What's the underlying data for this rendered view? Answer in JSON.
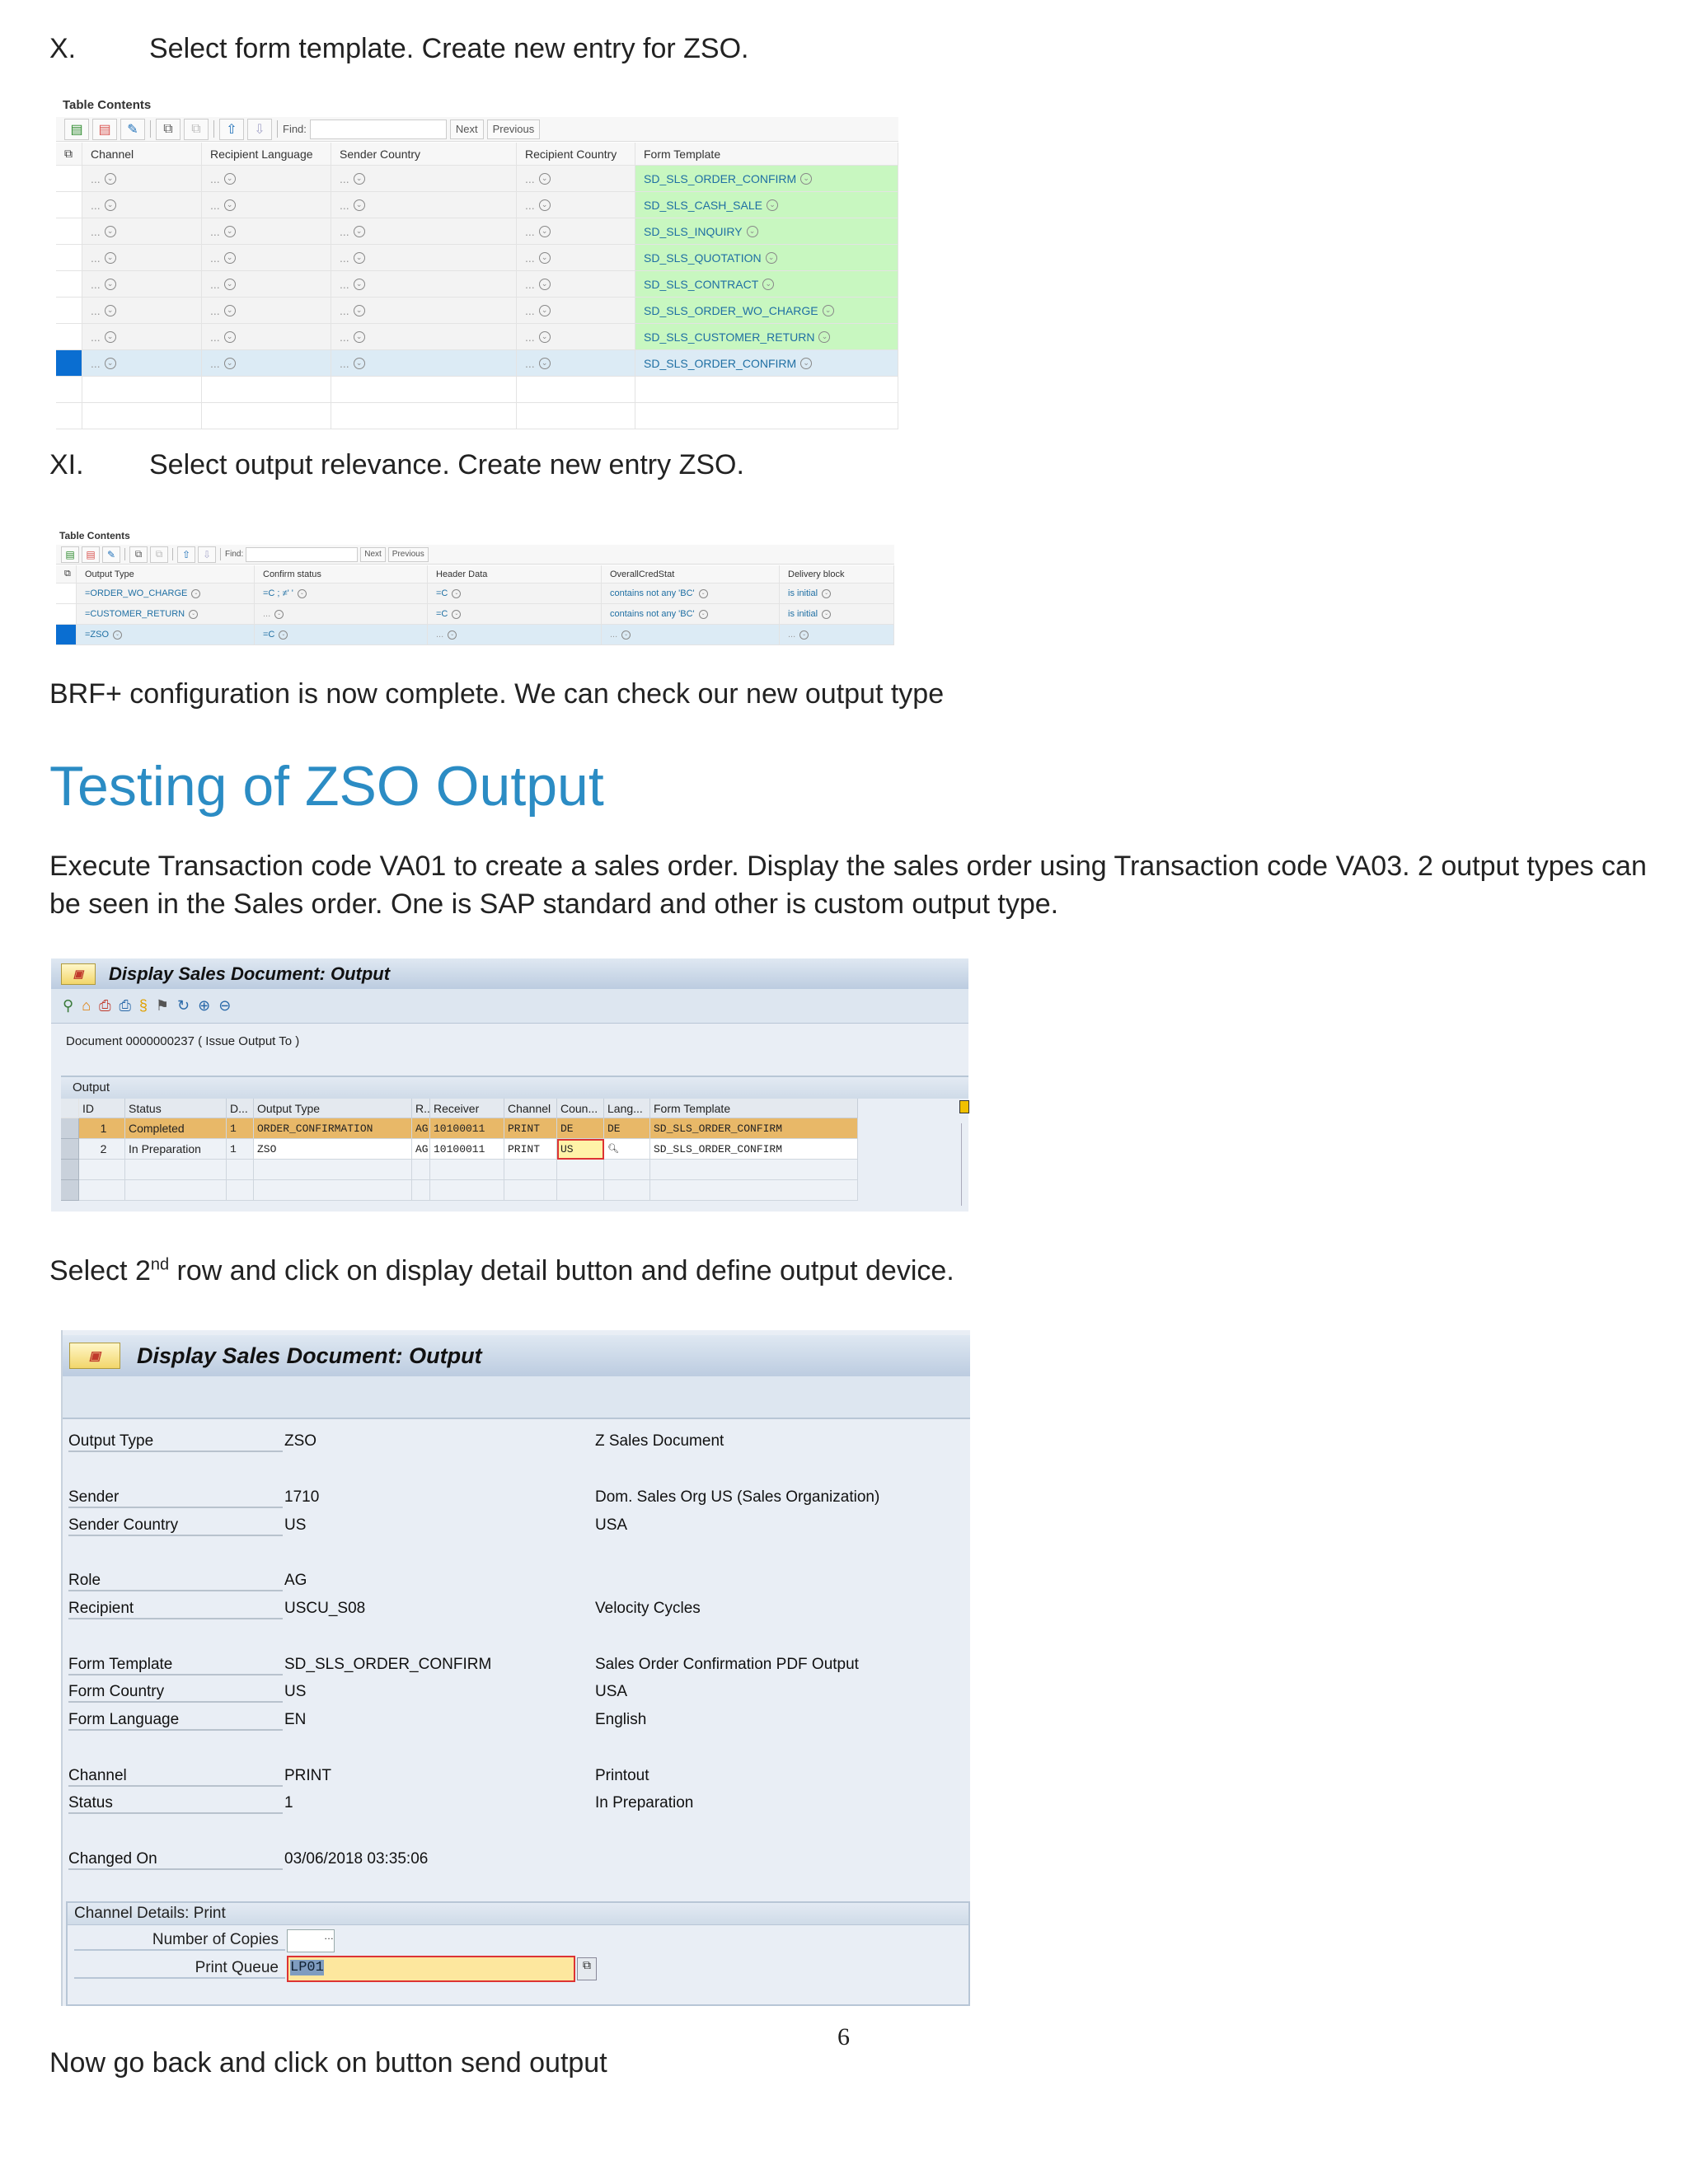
{
  "step_x": {
    "num": "X.",
    "text": "Select form template. Create new entry for ZSO."
  },
  "table1": {
    "title": "Table Contents",
    "find_label": "Find:",
    "find_value": "",
    "next": "Next",
    "previous": "Previous",
    "columns": [
      "Channel",
      "Recipient Language",
      "Sender Country",
      "Recipient Country",
      "Form Template"
    ],
    "rows": [
      {
        "cells": [
          "...",
          "...",
          "...",
          "...",
          "SD_SLS_ORDER_CONFIRM"
        ],
        "selected": false
      },
      {
        "cells": [
          "...",
          "...",
          "...",
          "...",
          "SD_SLS_CASH_SALE"
        ],
        "selected": false
      },
      {
        "cells": [
          "...",
          "...",
          "...",
          "...",
          "SD_SLS_INQUIRY"
        ],
        "selected": false
      },
      {
        "cells": [
          "...",
          "...",
          "...",
          "...",
          "SD_SLS_QUOTATION"
        ],
        "selected": false
      },
      {
        "cells": [
          "...",
          "...",
          "...",
          "...",
          "SD_SLS_CONTRACT"
        ],
        "selected": false
      },
      {
        "cells": [
          "...",
          "...",
          "...",
          "...",
          "SD_SLS_ORDER_WO_CHARGE"
        ],
        "selected": false
      },
      {
        "cells": [
          "...",
          "...",
          "...",
          "...",
          "SD_SLS_CUSTOMER_RETURN"
        ],
        "selected": false
      },
      {
        "cells": [
          "...",
          "...",
          "...",
          "...",
          "SD_SLS_ORDER_CONFIRM"
        ],
        "selected": true
      }
    ]
  },
  "step_xi": {
    "num": "XI.",
    "text": "Select output relevance. Create new entry ZSO."
  },
  "table2": {
    "title": "Table Contents",
    "find_label": "Find:",
    "find_value": "",
    "next": "Next",
    "previous": "Previous",
    "columns": [
      "Output Type",
      "Confirm status",
      "Header Data",
      "OverallCredStat",
      "Delivery block"
    ],
    "rows": [
      {
        "cells": [
          "=ORDER_WO_CHARGE",
          "=C ; ≠' '",
          "=C",
          "contains not any 'BC'",
          "is initial"
        ],
        "selected": false
      },
      {
        "cells": [
          "=CUSTOMER_RETURN",
          "...",
          "=C",
          "contains not any 'BC'",
          "is initial"
        ],
        "selected": false
      },
      {
        "cells": [
          "=ZSO",
          "=C",
          "...",
          "...",
          "..."
        ],
        "selected": true
      }
    ]
  },
  "brf_done": "BRF+ configuration is now complete. We can check our new output type",
  "section_heading": "Testing of ZSO Output",
  "section_para": "Execute Transaction code VA01 to create a sales order. Display the sales order using Transaction code VA03. 2 output types can be seen in the Sales order. One is SAP standard and other is custom output type.",
  "screen1": {
    "title": "Display Sales Document: Output",
    "document_line": "Document 0000000237 ( Issue Output To )",
    "panel_title": "Output",
    "columns": [
      "ID",
      "Status",
      "D...",
      "Output Type",
      "R..",
      "Receiver",
      "Channel",
      "Coun...",
      "Lang...",
      "Form Template"
    ],
    "rows": [
      [
        "1",
        "Completed",
        "1",
        "ORDER_CONFIRMATION",
        "AG",
        "10100011",
        "PRINT",
        "DE",
        "DE",
        "SD_SLS_ORDER_CONFIRM"
      ],
      [
        "2",
        "In Preparation",
        "1",
        "ZSO",
        "AG",
        "10100011",
        "PRINT",
        "US",
        "",
        "SD_SLS_ORDER_CONFIRM"
      ]
    ],
    "selected_row": 1,
    "colors": {
      "selected_row": "#e8b868",
      "focus_field": "#fff3a8"
    }
  },
  "step_select": {
    "pre": "Select 2",
    "sup": "nd",
    "post": " row and click on display detail button and define output device."
  },
  "screen2": {
    "title": "Display Sales Document: Output",
    "fields": [
      {
        "label": "Output Type",
        "value": "ZSO",
        "desc": "Z Sales Document"
      },
      {
        "label": "Sender",
        "value": "1710",
        "desc": "Dom. Sales Org US (Sales Organization)"
      },
      {
        "label": "Sender Country",
        "value": "US",
        "desc": "USA"
      },
      {
        "label": "Role",
        "value": "AG",
        "desc": ""
      },
      {
        "label": "Recipient",
        "value": "USCU_S08",
        "desc": "Velocity Cycles"
      },
      {
        "label": "Form Template",
        "value": "SD_SLS_ORDER_CONFIRM",
        "desc": "Sales Order Confirmation PDF Output"
      },
      {
        "label": "Form Country",
        "value": "US",
        "desc": "USA"
      },
      {
        "label": "Form Language",
        "value": "EN",
        "desc": "English"
      },
      {
        "label": "Channel",
        "value": "PRINT",
        "desc": "Printout"
      },
      {
        "label": "Status",
        "value": "1",
        "desc": "In Preparation"
      },
      {
        "label": "Changed On",
        "value": "03/06/2018 03:35:06",
        "desc": ""
      }
    ],
    "channel_details": {
      "title": "Channel Details: Print",
      "copies_label": "Number of Copies",
      "copies_value": "",
      "queue_label": "Print Queue",
      "queue_value": "LP01"
    }
  },
  "page_number": "6",
  "final_text": "Now go back and click on button send output"
}
